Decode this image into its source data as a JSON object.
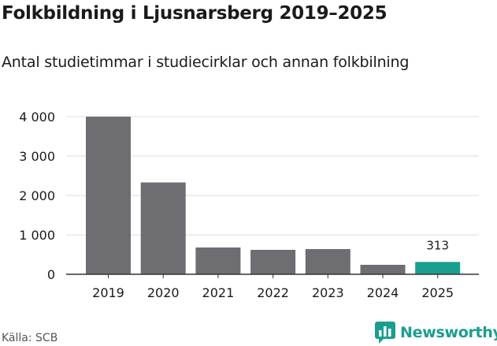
{
  "title": "Folkbildning i Ljusnarsberg 2019–2025",
  "subtitle": "Antal studietimmar i studiecirklar och annan folkbilning",
  "source": "Källa: SCB",
  "brand": {
    "name": "Newsworthy",
    "icon": "bar-chart-speech-bubble-icon"
  },
  "colors": {
    "bar": "#6e6d72",
    "highlight": "#1a9e8f",
    "brand": "#1a9e8f",
    "grid": "#dddddd",
    "axis": "#333333"
  },
  "chart_data": {
    "type": "bar",
    "title": "Folkbildning i Ljusnarsberg 2019–2025",
    "subtitle": "Antal studietimmar i studiecirklar och annan folkbilning",
    "categories": [
      "2019",
      "2020",
      "2021",
      "2022",
      "2023",
      "2024",
      "2025"
    ],
    "values": [
      4000,
      2330,
      680,
      620,
      640,
      240,
      313
    ],
    "highlight_index": 6,
    "data_labels": [
      {
        "index": 6,
        "text": "313"
      }
    ],
    "ylim": [
      0,
      4000
    ],
    "yticks": [
      0,
      1000,
      2000,
      3000,
      4000
    ],
    "ytick_labels": [
      "0",
      "1 000",
      "2 000",
      "3 000",
      "4 000"
    ],
    "xlabel": "",
    "ylabel": "",
    "grid": true,
    "legend": "none"
  }
}
